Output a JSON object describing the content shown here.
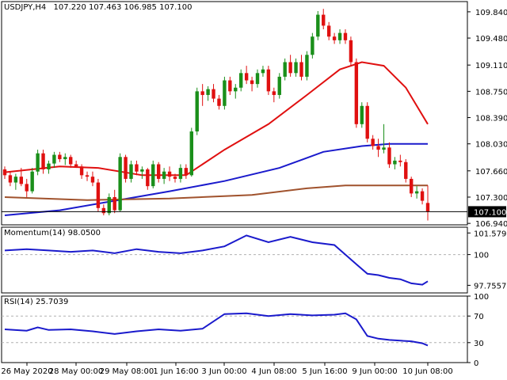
{
  "header": {
    "symbol_timeframe": "USDJPY,H4",
    "ohlc": "107.220 107.463 106.985 107.100"
  },
  "colors": {
    "bull": "#1a8f1a",
    "bear": "#e01010",
    "ma_fast": "#e01010",
    "ma_mid": "#1a1acc",
    "ma_slow": "#a0522d",
    "indicator_line": "#1a1acc",
    "grid_level": "#b0b0b0",
    "frame": "#000000"
  },
  "chart_data": [
    {
      "type": "candlestick",
      "title": "USDJPY,H4",
      "ylim": [
        106.92,
        109.98
      ],
      "yticks": [
        "109.840",
        "109.480",
        "109.110",
        "108.750",
        "108.390",
        "108.030",
        "107.660",
        "107.300",
        "106.940"
      ],
      "current_price_label": "107.100",
      "xticks": [
        "26 May 2020",
        "28 May 00:00",
        "29 May 08:00",
        "1 Jun 16:00",
        "3 Jun 00:00",
        "4 Jun 08:00",
        "5 Jun 16:00",
        "9 Jun 00:00",
        "10 Jun 08:00"
      ],
      "candles": [
        [
          107.68,
          107.72,
          107.55,
          107.6
        ],
        [
          107.6,
          107.65,
          107.45,
          107.5
        ],
        [
          107.5,
          107.62,
          107.4,
          107.58
        ],
        [
          107.58,
          107.7,
          107.45,
          107.48
        ],
        [
          107.48,
          107.55,
          107.3,
          107.38
        ],
        [
          107.38,
          107.7,
          107.35,
          107.65
        ],
        [
          107.65,
          107.95,
          107.6,
          107.9
        ],
        [
          107.9,
          107.95,
          107.62,
          107.68
        ],
        [
          107.68,
          107.8,
          107.62,
          107.76
        ],
        [
          107.76,
          107.92,
          107.7,
          107.88
        ],
        [
          107.88,
          107.92,
          107.78,
          107.82
        ],
        [
          107.82,
          107.9,
          107.74,
          107.85
        ],
        [
          107.85,
          107.88,
          107.7,
          107.75
        ],
        [
          107.75,
          107.8,
          107.7,
          107.72
        ],
        [
          107.72,
          107.75,
          107.55,
          107.6
        ],
        [
          107.6,
          107.65,
          107.52,
          107.58
        ],
        [
          107.58,
          107.65,
          107.45,
          107.5
        ],
        [
          107.5,
          107.55,
          107.1,
          107.15
        ],
        [
          107.15,
          107.2,
          107.05,
          107.08
        ],
        [
          107.08,
          107.35,
          107.05,
          107.3
        ],
        [
          107.3,
          107.4,
          107.08,
          107.12
        ],
        [
          107.12,
          107.9,
          107.1,
          107.85
        ],
        [
          107.85,
          107.88,
          107.5,
          107.55
        ],
        [
          107.55,
          107.8,
          107.5,
          107.75
        ],
        [
          107.75,
          107.8,
          107.6,
          107.65
        ],
        [
          107.65,
          107.72,
          107.55,
          107.68
        ],
        [
          107.68,
          107.7,
          107.4,
          107.45
        ],
        [
          107.45,
          107.8,
          107.42,
          107.75
        ],
        [
          107.75,
          107.78,
          107.5,
          107.55
        ],
        [
          107.55,
          107.7,
          107.48,
          107.65
        ],
        [
          107.65,
          107.72,
          107.52,
          107.58
        ],
        [
          107.58,
          107.62,
          107.5,
          107.55
        ],
        [
          107.55,
          107.75,
          107.5,
          107.7
        ],
        [
          107.7,
          107.75,
          107.55,
          107.6
        ],
        [
          107.6,
          108.25,
          107.58,
          108.2
        ],
        [
          108.2,
          108.8,
          108.15,
          108.75
        ],
        [
          108.75,
          108.85,
          108.55,
          108.7
        ],
        [
          108.7,
          108.82,
          108.62,
          108.78
        ],
        [
          108.78,
          108.85,
          108.6,
          108.65
        ],
        [
          108.65,
          108.7,
          108.5,
          108.55
        ],
        [
          108.55,
          108.95,
          108.5,
          108.9
        ],
        [
          108.9,
          108.95,
          108.7,
          108.75
        ],
        [
          108.75,
          108.85,
          108.65,
          108.8
        ],
        [
          108.8,
          109.05,
          108.75,
          109.0
        ],
        [
          109.0,
          109.1,
          108.85,
          108.9
        ],
        [
          108.9,
          108.95,
          108.75,
          108.85
        ],
        [
          108.85,
          109.05,
          108.8,
          109.0
        ],
        [
          109.0,
          109.1,
          108.95,
          109.05
        ],
        [
          109.05,
          109.1,
          108.7,
          108.75
        ],
        [
          108.75,
          108.8,
          108.6,
          108.7
        ],
        [
          108.7,
          109.0,
          108.65,
          108.95
        ],
        [
          108.95,
          109.2,
          108.9,
          109.15
        ],
        [
          109.15,
          109.25,
          108.95,
          109.0
        ],
        [
          109.0,
          109.2,
          108.95,
          109.15
        ],
        [
          109.15,
          109.25,
          108.9,
          108.95
        ],
        [
          108.95,
          109.3,
          108.9,
          109.25
        ],
        [
          109.25,
          109.55,
          109.2,
          109.5
        ],
        [
          109.5,
          109.85,
          109.45,
          109.8
        ],
        [
          109.8,
          109.88,
          109.6,
          109.65
        ],
        [
          109.65,
          109.7,
          109.45,
          109.5
        ],
        [
          109.5,
          109.55,
          109.4,
          109.45
        ],
        [
          109.45,
          109.6,
          109.4,
          109.55
        ],
        [
          109.55,
          109.6,
          109.4,
          109.45
        ],
        [
          109.45,
          109.5,
          109.1,
          109.15
        ],
        [
          109.15,
          109.2,
          108.25,
          108.3
        ],
        [
          108.3,
          108.6,
          108.25,
          108.55
        ],
        [
          108.55,
          108.6,
          108.05,
          108.1
        ],
        [
          108.1,
          108.15,
          107.95,
          108.0
        ],
        [
          108.0,
          108.1,
          107.85,
          107.95
        ],
        [
          107.95,
          108.3,
          107.9,
          107.98
        ],
        [
          107.98,
          108.05,
          107.7,
          107.75
        ],
        [
          107.75,
          107.85,
          107.68,
          107.8
        ],
        [
          107.8,
          107.88,
          107.72,
          107.78
        ],
        [
          107.78,
          107.82,
          107.5,
          107.55
        ],
        [
          107.55,
          107.58,
          107.3,
          107.35
        ],
        [
          107.35,
          107.45,
          107.28,
          107.38
        ],
        [
          107.38,
          107.42,
          107.2,
          107.25
        ],
        [
          107.22,
          107.46,
          106.98,
          107.1
        ]
      ],
      "series": [
        {
          "key": "ma_fast",
          "points": [
            [
              0,
              107.64
            ],
            [
              10,
              107.72
            ],
            [
              17,
              107.7
            ],
            [
              25,
              107.6
            ],
            [
              33,
              107.6
            ],
            [
              40,
              107.95
            ],
            [
              48,
              108.3
            ],
            [
              55,
              108.7
            ],
            [
              61,
              109.05
            ],
            [
              65,
              109.15
            ],
            [
              69,
              109.1
            ],
            [
              73,
              108.8
            ],
            [
              77,
              108.3
            ]
          ]
        },
        {
          "key": "ma_mid",
          "points": [
            [
              0,
              107.05
            ],
            [
              10,
              107.12
            ],
            [
              20,
              107.25
            ],
            [
              30,
              107.38
            ],
            [
              40,
              107.52
            ],
            [
              50,
              107.7
            ],
            [
              58,
              107.92
            ],
            [
              65,
              108.0
            ],
            [
              70,
              108.03
            ],
            [
              77,
              108.03
            ]
          ]
        },
        {
          "key": "ma_slow",
          "points": [
            [
              0,
              107.3
            ],
            [
              15,
              107.26
            ],
            [
              30,
              107.28
            ],
            [
              45,
              107.33
            ],
            [
              55,
              107.42
            ],
            [
              62,
              107.46
            ],
            [
              70,
              107.46
            ],
            [
              77,
              107.46
            ]
          ]
        }
      ]
    },
    {
      "type": "line",
      "title": "Momentum(14) 98.0500",
      "ylim": [
        97.2,
        102.0
      ],
      "yticks": [
        "101.5791",
        "100",
        "97.7557"
      ],
      "level": 100,
      "x": [
        0,
        4,
        8,
        12,
        16,
        20,
        24,
        28,
        32,
        36,
        40,
        44,
        48,
        52,
        56,
        60,
        62,
        64,
        66,
        68,
        70,
        72,
        74,
        76,
        77
      ],
      "values": [
        100.3,
        100.4,
        100.3,
        100.2,
        100.3,
        100.1,
        100.4,
        100.2,
        100.1,
        100.3,
        100.6,
        101.4,
        100.9,
        101.3,
        100.9,
        100.7,
        100.0,
        99.3,
        98.6,
        98.5,
        98.3,
        98.2,
        97.9,
        97.8,
        98.05
      ]
    },
    {
      "type": "line",
      "title": "RSI(14) 25.7039",
      "ylim": [
        0,
        100
      ],
      "yticks": [
        "100",
        "70",
        "30",
        "0"
      ],
      "levels": [
        70,
        30
      ],
      "x": [
        0,
        4,
        6,
        8,
        12,
        16,
        20,
        24,
        28,
        32,
        36,
        40,
        44,
        48,
        52,
        56,
        60,
        62,
        64,
        66,
        68,
        70,
        72,
        74,
        76,
        77
      ],
      "values": [
        50,
        48,
        53,
        49,
        50,
        47,
        43,
        47,
        50,
        48,
        51,
        73,
        74,
        70,
        73,
        71,
        72,
        74,
        65,
        40,
        36,
        34,
        33,
        32,
        29,
        25.7
      ]
    }
  ]
}
